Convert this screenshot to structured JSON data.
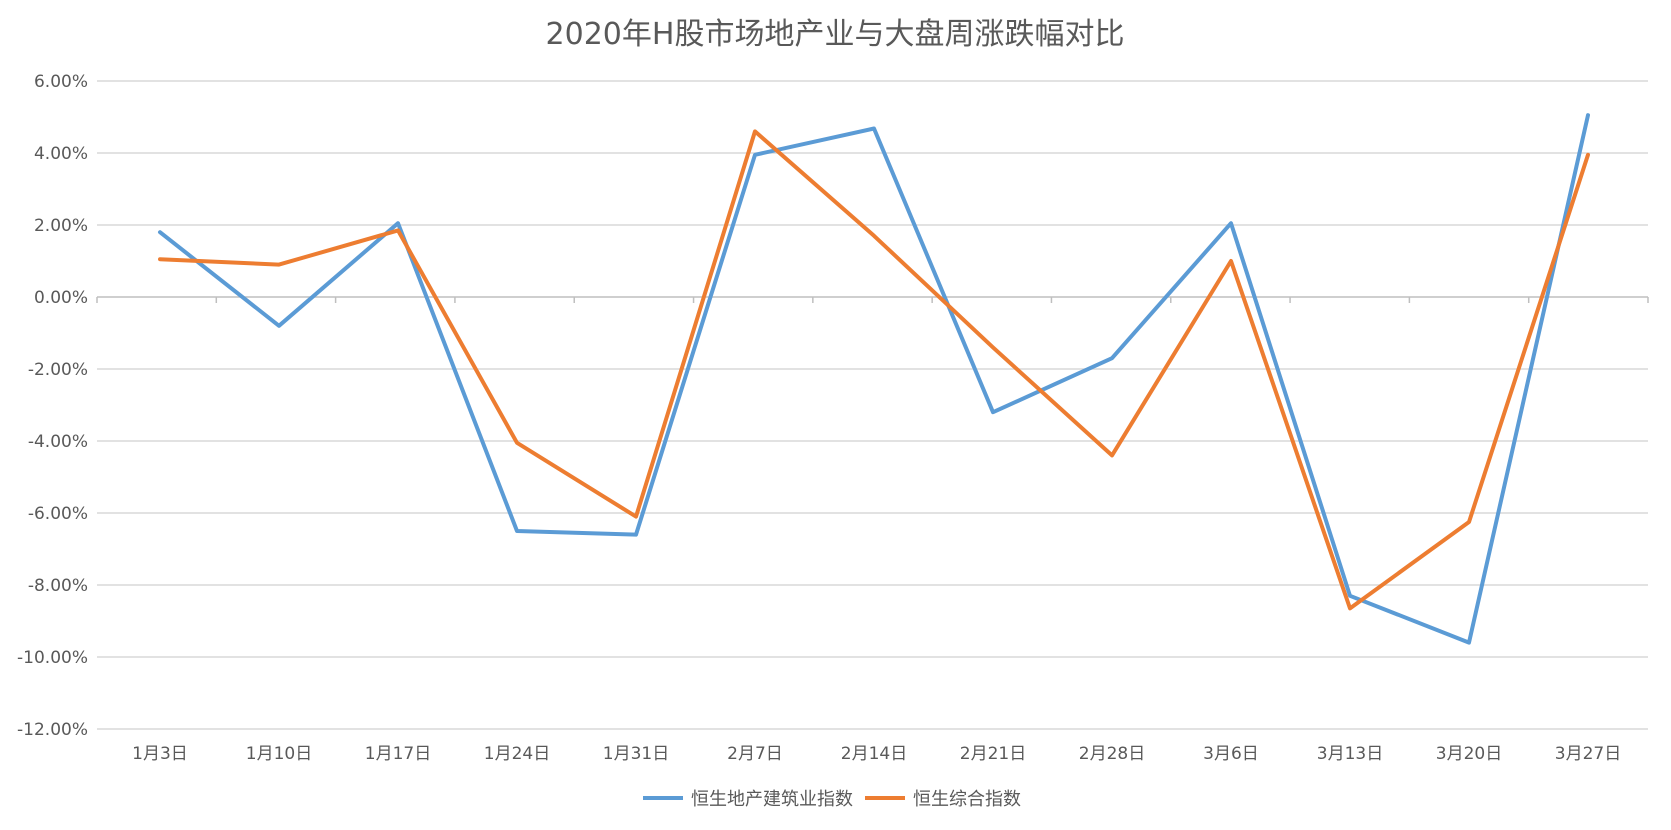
{
  "chart_data": {
    "type": "line",
    "title": "2020年H股市场地产业与大盘周涨跌幅对比",
    "xlabel": "",
    "ylabel": "",
    "categories": [
      "1月3日",
      "1月10日",
      "1月17日",
      "1月24日",
      "1月31日",
      "2月7日",
      "2月14日",
      "2月21日",
      "2月28日",
      "3月6日",
      "3月13日",
      "3月20日",
      "3月27日"
    ],
    "y_ticks": [
      "6.00%",
      "4.00%",
      "2.00%",
      "0.00%",
      "-2.00%",
      "-4.00%",
      "-6.00%",
      "-8.00%",
      "-10.00%",
      "-12.00%"
    ],
    "ylim": [
      -12,
      6
    ],
    "y_unit": "%",
    "grid": true,
    "legend_position": "bottom",
    "series": [
      {
        "name": "恒生地产建筑业指数",
        "color": "#5b9bd5",
        "values": [
          1.8,
          -0.8,
          2.05,
          -6.5,
          -6.6,
          3.95,
          4.68,
          -3.2,
          -1.7,
          2.05,
          -8.3,
          -9.6,
          5.05
        ]
      },
      {
        "name": "恒生综合指数",
        "color": "#ed7d31",
        "values": [
          1.05,
          0.9,
          1.85,
          -4.05,
          -6.1,
          4.6,
          1.7,
          -1.4,
          -4.4,
          1.0,
          -8.65,
          -6.25,
          3.95
        ]
      }
    ]
  }
}
